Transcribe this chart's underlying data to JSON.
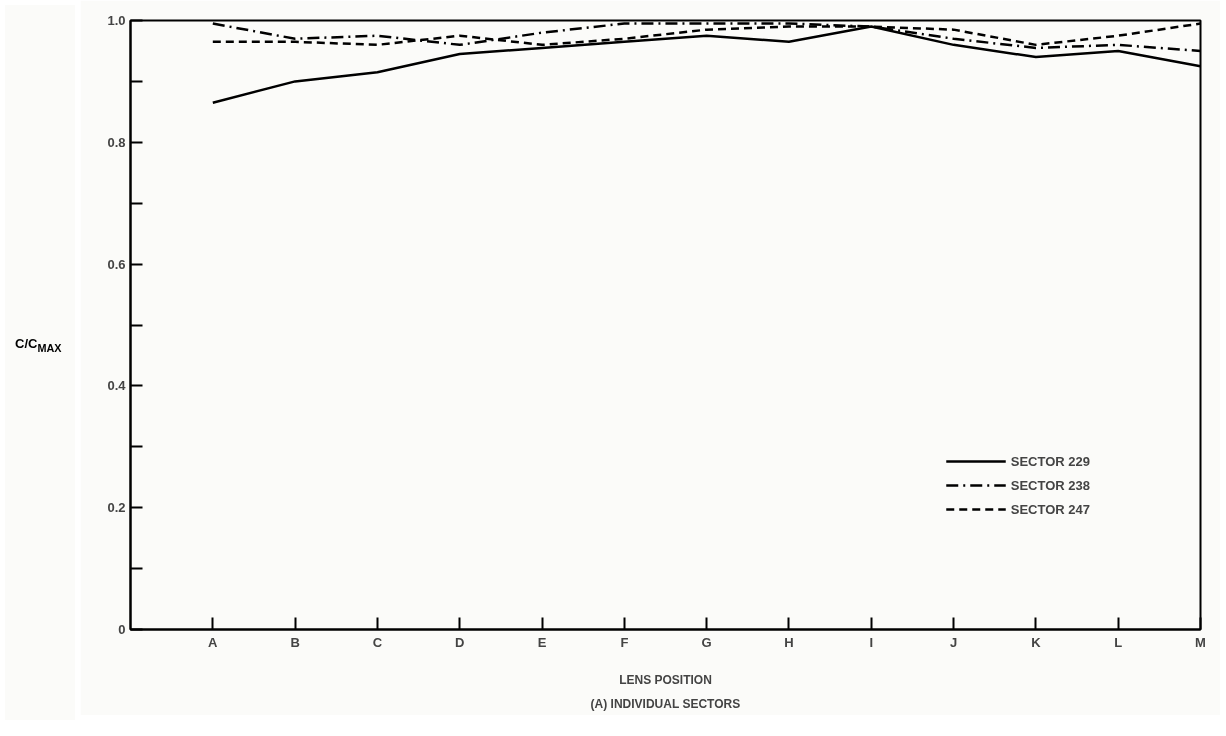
{
  "chart_data": {
    "type": "line",
    "xlabel": "LENS POSITION",
    "ylabel": "C/C$_{MAX}$",
    "annotations": [
      "(A) INDIVIDUAL SECTORS"
    ],
    "categories": [
      "A",
      "B",
      "C",
      "D",
      "E",
      "F",
      "G",
      "H",
      "I",
      "J",
      "K",
      "L",
      "M"
    ],
    "series": [
      {
        "name": "SECTOR 229",
        "color": "#000000",
        "line_style": "solid",
        "values": [
          0.865,
          0.9,
          0.915,
          0.945,
          0.955,
          0.965,
          0.975,
          0.965,
          0.99,
          0.96,
          0.94,
          0.95,
          0.925
        ]
      },
      {
        "name": "SECTOR 238",
        "color": "#000000",
        "line_style": "dashdot",
        "values": [
          0.995,
          0.97,
          0.975,
          0.96,
          0.98,
          0.995,
          0.995,
          0.995,
          0.99,
          0.97,
          0.955,
          0.96,
          0.95
        ]
      },
      {
        "name": "SECTOR 247",
        "color": "#000000",
        "line_style": "dashed",
        "values": [
          0.965,
          0.965,
          0.96,
          0.975,
          0.96,
          0.97,
          0.985,
          0.99,
          0.99,
          0.985,
          0.96,
          0.975,
          0.995
        ]
      }
    ],
    "ylim": [
      0,
      1
    ],
    "yticks": [
      0,
      {
        "value": 0.1,
        "label": null
      },
      0.2,
      {
        "value": 0.3,
        "label": null
      },
      0.4,
      {
        "value": 0.5,
        "label": null
      },
      0.6,
      {
        "value": 0.7,
        "label": null
      },
      0.8,
      {
        "value": 0.9,
        "label": null
      },
      {
        "value": 1,
        "label": "1.0"
      }
    ],
    "grid": false,
    "legend": "bottom right",
    "marker": "none"
  }
}
